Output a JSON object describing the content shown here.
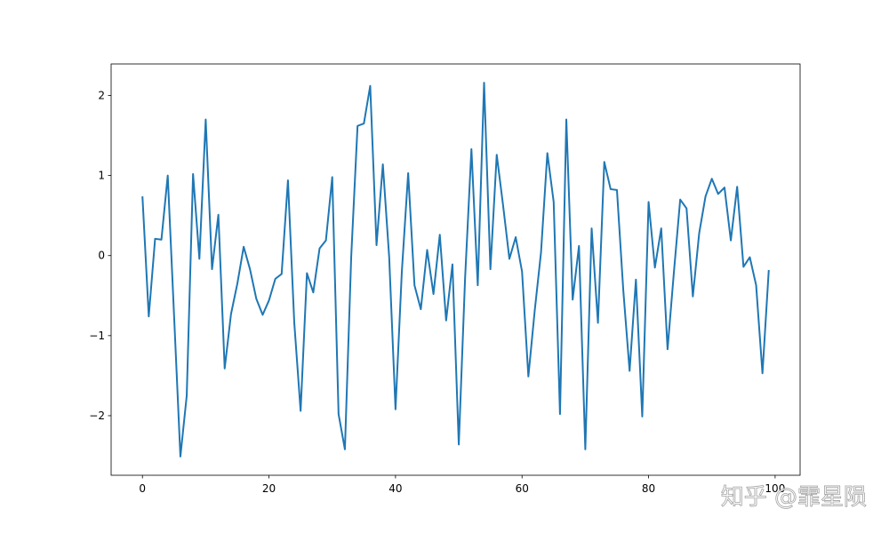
{
  "chart_data": {
    "type": "line",
    "x": [
      0,
      1,
      2,
      3,
      4,
      5,
      6,
      7,
      8,
      9,
      10,
      11,
      12,
      13,
      14,
      15,
      16,
      17,
      18,
      19,
      20,
      21,
      22,
      23,
      24,
      25,
      26,
      27,
      28,
      29,
      30,
      31,
      32,
      33,
      34,
      35,
      36,
      37,
      38,
      39,
      40,
      41,
      42,
      43,
      44,
      45,
      46,
      47,
      48,
      49,
      50,
      51,
      52,
      53,
      54,
      55,
      56,
      57,
      58,
      59,
      60,
      61,
      62,
      63,
      64,
      65,
      66,
      67,
      68,
      69,
      70,
      71,
      72,
      73,
      74,
      75,
      76,
      77,
      78,
      79,
      80,
      81,
      82,
      83,
      84,
      85,
      86,
      87,
      88,
      89,
      90,
      91,
      92,
      93,
      94,
      95,
      96,
      97,
      98,
      99
    ],
    "values": [
      0.74,
      -0.76,
      0.21,
      0.2,
      1.0,
      -0.75,
      -2.51,
      -1.75,
      1.02,
      -0.04,
      1.7,
      -0.17,
      0.51,
      -1.41,
      -0.73,
      -0.35,
      0.11,
      -0.17,
      -0.54,
      -0.74,
      -0.56,
      -0.29,
      -0.23,
      0.94,
      -0.84,
      -1.94,
      -0.22,
      -0.46,
      0.09,
      0.19,
      0.98,
      -1.98,
      -2.42,
      -0.01,
      1.62,
      1.65,
      2.12,
      0.13,
      1.14,
      -0.02,
      -1.92,
      -0.2,
      1.03,
      -0.37,
      -0.67,
      0.07,
      -0.48,
      0.26,
      -0.81,
      -0.11,
      -2.36,
      -0.28,
      1.33,
      -0.37,
      2.16,
      -0.17,
      1.26,
      0.63,
      -0.04,
      0.23,
      -0.2,
      -1.51,
      -0.69,
      0.04,
      1.28,
      0.67,
      -1.98,
      1.7,
      -0.55,
      0.12,
      -2.42,
      0.34,
      -0.84,
      1.17,
      0.83,
      0.82,
      -0.43,
      -1.44,
      -0.3,
      -2.01,
      0.67,
      -0.15,
      0.34,
      -1.17,
      -0.21,
      0.7,
      0.59,
      -0.51,
      0.28,
      0.74,
      0.96,
      0.77,
      0.85,
      0.19,
      0.86,
      -0.14,
      -0.02,
      -0.37,
      -1.47,
      -0.18
    ],
    "color": "#1f77b4",
    "xlim": [
      -4.95,
      103.95
    ],
    "ylim": [
      -2.744,
      2.394
    ],
    "xticks": [
      0,
      20,
      40,
      60,
      80,
      100
    ],
    "yticks": [
      {
        "value": -2,
        "label": "−2"
      },
      {
        "value": -1,
        "label": "−1"
      },
      0,
      1,
      2
    ]
  },
  "watermark": "知乎 @霏星陨"
}
